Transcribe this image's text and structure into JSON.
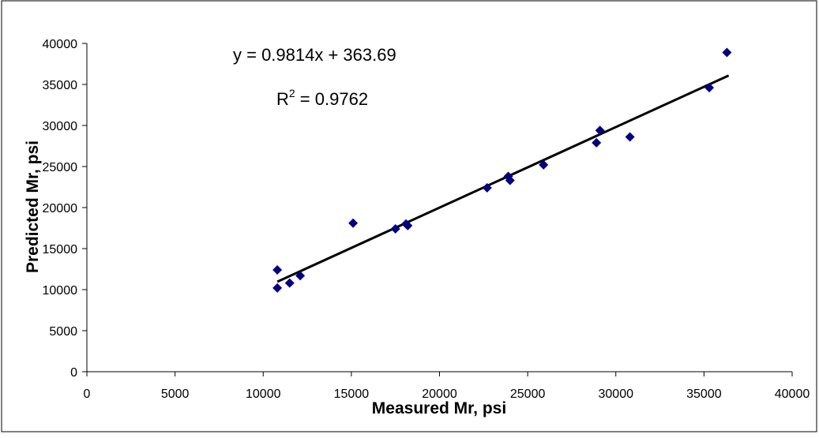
{
  "chart_data": {
    "type": "scatter",
    "xlabel": "Measured Mr, psi",
    "ylabel": "Predicted Mr, psi",
    "xlim": [
      0,
      40000
    ],
    "ylim": [
      0,
      40000
    ],
    "x_ticks": [
      0,
      5000,
      10000,
      15000,
      20000,
      25000,
      30000,
      35000,
      40000
    ],
    "y_ticks": [
      0,
      5000,
      10000,
      15000,
      20000,
      25000,
      30000,
      35000,
      40000
    ],
    "grid": false,
    "legend": "none",
    "marker_color": "#000080",
    "trendline": {
      "slope": 0.9814,
      "intercept": 363.69,
      "x_range": [
        10800,
        36400
      ],
      "color": "#000000"
    },
    "annotations": {
      "equation": "y = 0.9814x + 363.69",
      "r_squared_prefix": "R",
      "r_squared_exponent": "2",
      "r_squared_value": " = 0.9762"
    },
    "series": [
      {
        "points": [
          {
            "x": 10800,
            "y": 12400
          },
          {
            "x": 10800,
            "y": 10200
          },
          {
            "x": 11500,
            "y": 10800
          },
          {
            "x": 12100,
            "y": 11700
          },
          {
            "x": 15100,
            "y": 18100
          },
          {
            "x": 17500,
            "y": 17400
          },
          {
            "x": 18100,
            "y": 18000
          },
          {
            "x": 18200,
            "y": 17800
          },
          {
            "x": 22700,
            "y": 22400
          },
          {
            "x": 23900,
            "y": 23800
          },
          {
            "x": 24000,
            "y": 23300
          },
          {
            "x": 25900,
            "y": 25200
          },
          {
            "x": 28900,
            "y": 27900
          },
          {
            "x": 29100,
            "y": 29400
          },
          {
            "x": 30800,
            "y": 28600
          },
          {
            "x": 35300,
            "y": 34600
          },
          {
            "x": 36300,
            "y": 38900
          }
        ]
      }
    ]
  }
}
